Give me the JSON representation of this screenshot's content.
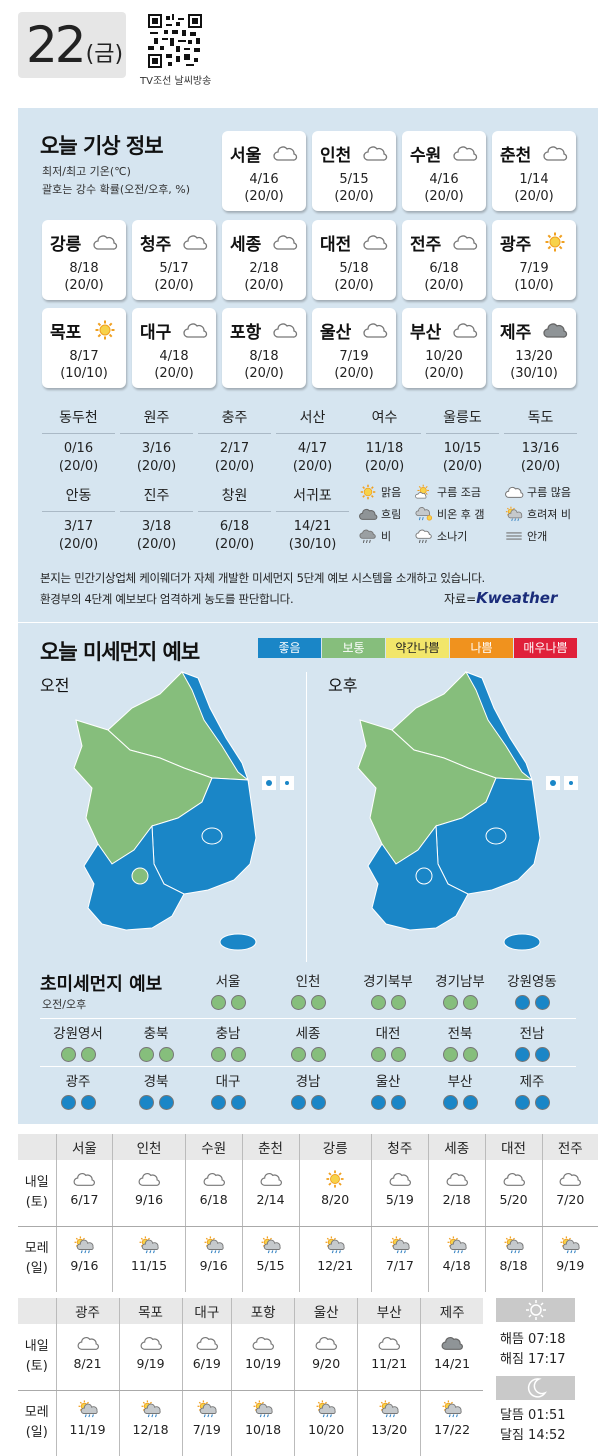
{
  "date": {
    "day": "22",
    "weekday": "(금)"
  },
  "qr_label": "TV조선 날씨방송",
  "today": {
    "title": "오늘 기상 정보",
    "note1": "최저/최고 기온(℃)",
    "note2": "괄호는 강수 확률(오전/오후, %)",
    "cards": [
      {
        "name": "서울",
        "icon": "cloud-icon",
        "temp": "4/16",
        "rain": "(20/0)"
      },
      {
        "name": "인천",
        "icon": "cloud-icon",
        "temp": "5/15",
        "rain": "(20/0)"
      },
      {
        "name": "수원",
        "icon": "cloud-icon",
        "temp": "4/16",
        "rain": "(20/0)"
      },
      {
        "name": "춘천",
        "icon": "cloud-icon",
        "temp": "1/14",
        "rain": "(20/0)"
      },
      {
        "name": "강릉",
        "icon": "cloud-icon",
        "temp": "8/18",
        "rain": "(20/0)"
      },
      {
        "name": "청주",
        "icon": "cloud-icon",
        "temp": "5/17",
        "rain": "(20/0)"
      },
      {
        "name": "세종",
        "icon": "cloud-icon",
        "temp": "2/18",
        "rain": "(20/0)"
      },
      {
        "name": "대전",
        "icon": "cloud-icon",
        "temp": "5/18",
        "rain": "(20/0)"
      },
      {
        "name": "전주",
        "icon": "cloud-icon",
        "temp": "6/18",
        "rain": "(20/0)"
      },
      {
        "name": "광주",
        "icon": "sun-icon",
        "temp": "7/19",
        "rain": "(10/0)"
      },
      {
        "name": "목포",
        "icon": "sun-icon",
        "temp": "8/17",
        "rain": "(10/10)"
      },
      {
        "name": "대구",
        "icon": "cloud-icon",
        "temp": "4/18",
        "rain": "(20/0)"
      },
      {
        "name": "포항",
        "icon": "cloud-icon",
        "temp": "8/18",
        "rain": "(20/0)"
      },
      {
        "name": "울산",
        "icon": "cloud-icon",
        "temp": "7/19",
        "rain": "(20/0)"
      },
      {
        "name": "부산",
        "icon": "cloud-icon",
        "temp": "10/20",
        "rain": "(20/0)"
      },
      {
        "name": "제주",
        "icon": "dark-cloud-icon",
        "temp": "13/20",
        "rain": "(30/10)"
      }
    ],
    "small": [
      {
        "name": "동두천",
        "temp": "0/16",
        "rain": "(20/0)"
      },
      {
        "name": "원주",
        "temp": "3/16",
        "rain": "(20/0)"
      },
      {
        "name": "충주",
        "temp": "2/17",
        "rain": "(20/0)"
      },
      {
        "name": "서산",
        "temp": "4/17",
        "rain": "(20/0)"
      },
      {
        "name": "여수",
        "temp": "11/18",
        "rain": "(20/0)"
      },
      {
        "name": "울릉도",
        "temp": "10/15",
        "rain": "(20/0)"
      },
      {
        "name": "독도",
        "temp": "13/16",
        "rain": "(20/0)"
      },
      {
        "name": "안동",
        "temp": "3/17",
        "rain": "(20/0)"
      },
      {
        "name": "진주",
        "temp": "3/18",
        "rain": "(20/0)"
      },
      {
        "name": "창원",
        "temp": "6/18",
        "rain": "(20/0)"
      },
      {
        "name": "서귀포",
        "temp": "14/21",
        "rain": "(30/10)"
      }
    ],
    "legend": [
      "맑음",
      "구름 조금",
      "구름 많음",
      "흐림",
      "비온 후 갬",
      "흐려져 비",
      "비",
      "소나기",
      "안개"
    ],
    "disclaimer1": "본지는 민간기상업체 케이웨더가 자체 개발한 미세먼지 5단계 예보 시스템을 소개하고 있습니다.",
    "disclaimer2": "환경부의 4단계 예보보다 엄격하게 농도를 판단합니다.",
    "source_label": "자료=",
    "source_brand": "Kweather"
  },
  "dust": {
    "title": "오늘 미세먼지 예보",
    "scale": [
      {
        "label": "좋음",
        "color": "#1a86c7",
        "text": "#ffffff"
      },
      {
        "label": "보통",
        "color": "#86be7c",
        "text": "#ffffff"
      },
      {
        "label": "약간나쁨",
        "color": "#f2e66a",
        "text": "#222222"
      },
      {
        "label": "나쁨",
        "color": "#f0921e",
        "text": "#ffffff"
      },
      {
        "label": "매우나쁨",
        "color": "#e0203a",
        "text": "#ffffff"
      }
    ],
    "am_label": "오전",
    "pm_label": "오후"
  },
  "ultra": {
    "title": "초미세먼지 예보",
    "subtitle": "오전/오후",
    "cities": [
      {
        "name": "서울",
        "am": "normal",
        "pm": "normal"
      },
      {
        "name": "인천",
        "am": "normal",
        "pm": "normal"
      },
      {
        "name": "경기북부",
        "am": "normal",
        "pm": "normal"
      },
      {
        "name": "경기남부",
        "am": "normal",
        "pm": "normal"
      },
      {
        "name": "강원영동",
        "am": "good",
        "pm": "good"
      },
      {
        "name": "강원영서",
        "am": "normal",
        "pm": "normal"
      },
      {
        "name": "충북",
        "am": "normal",
        "pm": "normal"
      },
      {
        "name": "충남",
        "am": "normal",
        "pm": "normal"
      },
      {
        "name": "세종",
        "am": "normal",
        "pm": "normal"
      },
      {
        "name": "대전",
        "am": "normal",
        "pm": "normal"
      },
      {
        "name": "전북",
        "am": "normal",
        "pm": "normal"
      },
      {
        "name": "전남",
        "am": "good",
        "pm": "good"
      },
      {
        "name": "광주",
        "am": "good",
        "pm": "good"
      },
      {
        "name": "경북",
        "am": "good",
        "pm": "good"
      },
      {
        "name": "대구",
        "am": "good",
        "pm": "good"
      },
      {
        "name": "경남",
        "am": "good",
        "pm": "good"
      },
      {
        "name": "울산",
        "am": "good",
        "pm": "good"
      },
      {
        "name": "부산",
        "am": "good",
        "pm": "good"
      },
      {
        "name": "제주",
        "am": "good",
        "pm": "good"
      }
    ]
  },
  "forecast1": {
    "cities": [
      "서울",
      "인천",
      "수원",
      "춘천",
      "강릉",
      "청주",
      "세종",
      "대전",
      "전주"
    ],
    "row1_label1": "내일",
    "row1_label2": "(토)",
    "row2_label1": "모레",
    "row2_label2": "(일)",
    "row1": [
      {
        "icon": "cloud-icon",
        "temp": "6/17"
      },
      {
        "icon": "cloud-icon",
        "temp": "9/16"
      },
      {
        "icon": "cloud-icon",
        "temp": "6/18"
      },
      {
        "icon": "cloud-icon",
        "temp": "2/14"
      },
      {
        "icon": "sun-icon",
        "temp": "8/20"
      },
      {
        "icon": "cloud-icon",
        "temp": "5/19"
      },
      {
        "icon": "cloud-icon",
        "temp": "2/18"
      },
      {
        "icon": "cloud-icon",
        "temp": "5/20"
      },
      {
        "icon": "cloud-icon",
        "temp": "7/20"
      }
    ],
    "row2": [
      {
        "icon": "sun-cloud-rain-icon",
        "temp": "9/16"
      },
      {
        "icon": "sun-cloud-rain-icon",
        "temp": "11/15"
      },
      {
        "icon": "sun-cloud-rain-icon",
        "temp": "9/16"
      },
      {
        "icon": "sun-cloud-rain-icon",
        "temp": "5/15"
      },
      {
        "icon": "sun-cloud-rain-icon",
        "temp": "12/21"
      },
      {
        "icon": "sun-cloud-rain-icon",
        "temp": "7/17"
      },
      {
        "icon": "sun-cloud-rain-icon",
        "temp": "4/18"
      },
      {
        "icon": "sun-cloud-rain-icon",
        "temp": "8/18"
      },
      {
        "icon": "sun-cloud-rain-icon",
        "temp": "9/19"
      }
    ]
  },
  "forecast2": {
    "cities": [
      "광주",
      "목포",
      "대구",
      "포항",
      "울산",
      "부산",
      "제주"
    ],
    "row1": [
      {
        "icon": "cloud-icon",
        "temp": "8/21"
      },
      {
        "icon": "cloud-icon",
        "temp": "9/19"
      },
      {
        "icon": "cloud-icon",
        "temp": "6/19"
      },
      {
        "icon": "cloud-icon",
        "temp": "10/19"
      },
      {
        "icon": "cloud-icon",
        "temp": "9/20"
      },
      {
        "icon": "cloud-icon",
        "temp": "11/21"
      },
      {
        "icon": "dark-cloud-icon",
        "temp": "14/21"
      }
    ],
    "row2": [
      {
        "icon": "sun-cloud-rain-icon",
        "temp": "11/19"
      },
      {
        "icon": "sun-cloud-rain-icon",
        "temp": "12/18"
      },
      {
        "icon": "sun-cloud-rain-icon",
        "temp": "7/19"
      },
      {
        "icon": "sun-cloud-rain-icon",
        "temp": "10/18"
      },
      {
        "icon": "sun-cloud-rain-icon",
        "temp": "10/20"
      },
      {
        "icon": "sun-cloud-rain-icon",
        "temp": "13/20"
      },
      {
        "icon": "sun-cloud-rain-icon",
        "temp": "17/22"
      }
    ]
  },
  "sun": {
    "rise": "해뜸 07:18",
    "set": "해짐 17:17"
  },
  "moon": {
    "rise": "달뜸 01:51",
    "set": "달짐 14:52"
  }
}
